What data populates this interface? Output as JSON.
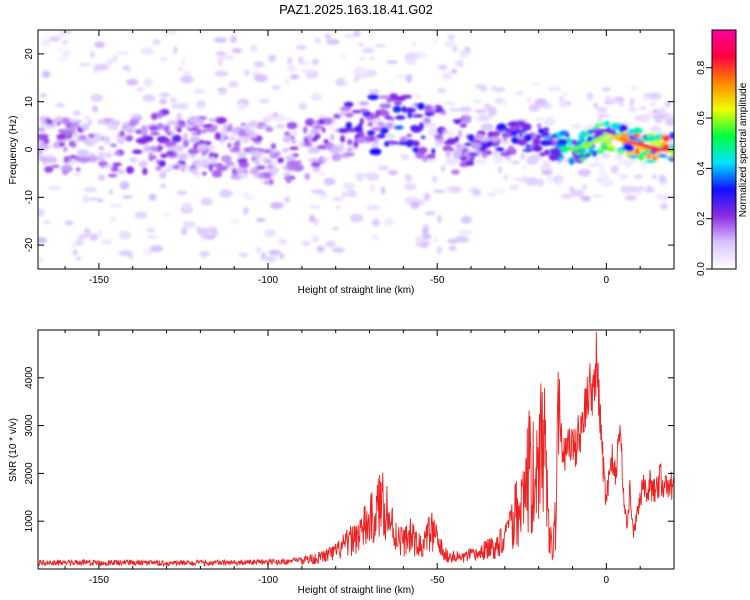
{
  "title": "PAZ1.2025.163.18.41.G02",
  "chart_data": [
    {
      "type": "heatmap",
      "xlabel": "Height of straight line (km)",
      "ylabel": "Frequency (Hz)",
      "xlim": [
        -168,
        20
      ],
      "ylim": [
        -25,
        25
      ],
      "xticks": [
        "-150",
        "-100",
        "-50",
        "0"
      ],
      "xtick_values": [
        -150,
        -100,
        -50,
        0
      ],
      "yticks": [
        "20",
        "10",
        "0",
        "-10",
        "-20"
      ],
      "ytick_values": [
        20,
        10,
        0,
        -10,
        -20
      ],
      "colorbar": {
        "label": "Normalized spectral amplitude",
        "ticks": [
          "0.0",
          "0.2",
          "0.4",
          "0.6",
          "0.8"
        ],
        "tick_values": [
          0.0,
          0.2,
          0.4,
          0.6,
          0.8
        ],
        "range": [
          0,
          0.95
        ],
        "colormap": [
          "#ffffff",
          "#d9c3ff",
          "#8a2be2",
          "#1010ff",
          "#00e5ff",
          "#00ff40",
          "#f0ff00",
          "#ff8800",
          "#ff0040",
          "#ff00a0"
        ]
      },
      "ridge": {
        "x": [
          -168,
          -160,
          -150,
          -140,
          -130,
          -120,
          -110,
          -100,
          -90,
          -80,
          -75,
          -70,
          -65,
          -60,
          -55,
          -50,
          -45,
          -40,
          -35,
          -30,
          -25,
          -20,
          -15,
          -10,
          -5,
          0,
          5,
          10,
          15,
          20
        ],
        "freq": [
          0,
          1,
          0,
          1,
          2,
          1,
          0,
          -1,
          0,
          1,
          6,
          5,
          5,
          6,
          4,
          3,
          1,
          1,
          2,
          2,
          3,
          2,
          1,
          0,
          1,
          3,
          2,
          1,
          0,
          0
        ],
        "peak_amplitude": [
          0.2,
          0.22,
          0.2,
          0.22,
          0.25,
          0.22,
          0.2,
          0.22,
          0.22,
          0.24,
          0.3,
          0.32,
          0.35,
          0.38,
          0.33,
          0.3,
          0.28,
          0.3,
          0.3,
          0.32,
          0.35,
          0.4,
          0.45,
          0.55,
          0.6,
          0.6,
          0.75,
          0.8,
          0.85,
          0.9
        ]
      }
    },
    {
      "type": "line",
      "xlabel": "Height of straight line (km)",
      "ylabel": "SNR (10 * v/v)",
      "xlim": [
        -168,
        20
      ],
      "ylim": [
        0,
        5000
      ],
      "xticks": [
        "-150",
        "-100",
        "-50",
        "0"
      ],
      "xtick_values": [
        -150,
        -100,
        -50,
        0
      ],
      "yticks": [
        "1000",
        "2000",
        "3000",
        "4000"
      ],
      "ytick_values": [
        1000,
        2000,
        3000,
        4000
      ],
      "line_color": "#ee2222",
      "series": [
        {
          "x": [
            -168,
            -150,
            -130,
            -110,
            -95,
            -85,
            -80,
            -75,
            -72,
            -68,
            -66,
            -64,
            -62,
            -60,
            -58,
            -56,
            -54,
            -52,
            -50,
            -48,
            -46,
            -44,
            -42,
            -40,
            -38,
            -36,
            -34,
            -32,
            -30,
            -28,
            -26,
            -25,
            -24,
            -23,
            -22,
            -21,
            -20,
            -19,
            -18,
            -17,
            -16,
            -15,
            -14,
            -13,
            -12,
            -11,
            -10,
            -9,
            -8,
            -7,
            -6,
            -5,
            -4,
            -3,
            -2,
            -1,
            0,
            1,
            2,
            3,
            4,
            5,
            6,
            7,
            8,
            9,
            10,
            11,
            12,
            13,
            14,
            15,
            16,
            17,
            18,
            19,
            20
          ],
          "y": [
            130,
            130,
            120,
            130,
            150,
            230,
            350,
            620,
            820,
            1150,
            1500,
            1000,
            700,
            560,
            700,
            500,
            480,
            820,
            600,
            300,
            260,
            240,
            250,
            280,
            300,
            400,
            420,
            500,
            800,
            1200,
            1800,
            2600,
            2300,
            2900,
            2400,
            3000,
            2200,
            4200,
            2800,
            1300,
            400,
            1500,
            4300,
            2200,
            2500,
            2700,
            2500,
            2600,
            2900,
            3100,
            3300,
            3700,
            3400,
            4300,
            3600,
            2200,
            1400,
            2100,
            2300,
            1800,
            3300,
            1500,
            900,
            1600,
            750,
            1100,
            1500,
            1700,
            1500,
            1800,
            1600,
            1750,
            1900,
            1700,
            1850,
            1700,
            1900
          ]
        }
      ]
    }
  ]
}
